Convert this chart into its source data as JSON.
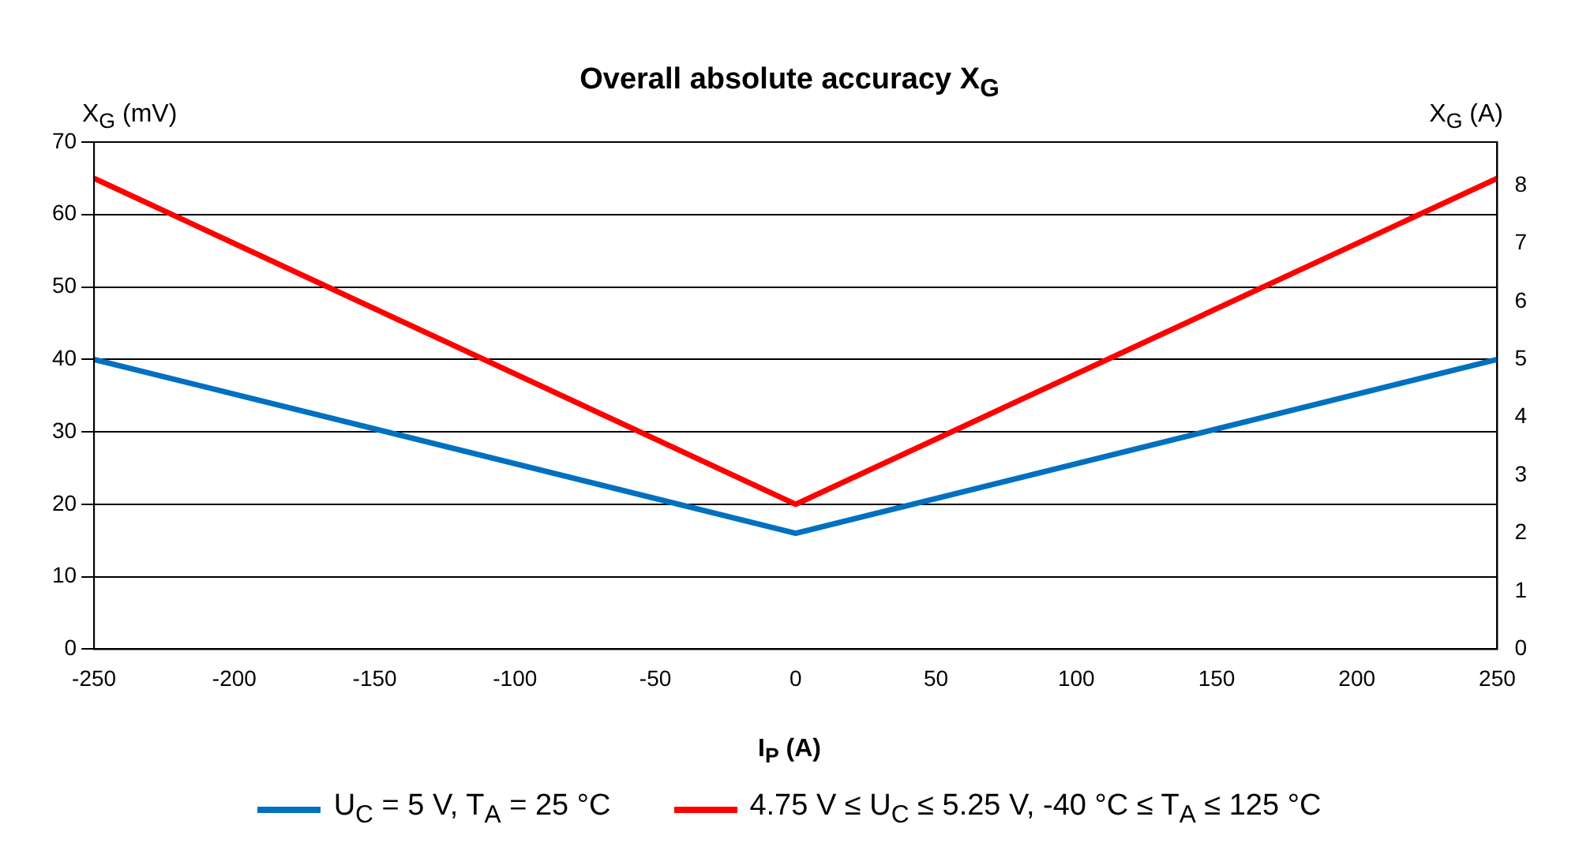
{
  "chart_data": {
    "type": "line",
    "title": "Overall absolute accuracy X$_{G}$",
    "xlabel": "I$_{P}$ (A)",
    "ylabel": "X$_{G}$ (mV)",
    "y2label": "X$_{G}$ (A)",
    "series": [
      {
        "name": "U$_{C}$ = 5 V, T$_{A}$ = 25 °C",
        "color": "#0070c0",
        "x": [
          -250,
          0,
          250
        ],
        "values": [
          40,
          16,
          40
        ]
      },
      {
        "name": "4.75 V ≤ U$_{C}$ ≤ 5.25 V, -40 °C ≤ T$_{A}$ ≤ 125 °C",
        "color": "#ff0000",
        "x": [
          -250,
          0,
          250
        ],
        "values": [
          65,
          20,
          65
        ]
      }
    ],
    "xlim": [
      -250,
      250
    ],
    "xticks": [
      -250,
      -200,
      -150,
      -100,
      -50,
      0,
      50,
      100,
      150,
      200,
      250
    ],
    "ylim": [
      0,
      70
    ],
    "yticks": [
      0,
      10,
      20,
      30,
      40,
      50,
      60,
      70
    ],
    "y2lim": [
      0,
      8.75
    ],
    "y2ticks": [
      0,
      1,
      2,
      3,
      4,
      5,
      6,
      7,
      8
    ],
    "grid": "y",
    "legend": "bottom",
    "marker": "none",
    "line_style": "solid"
  }
}
